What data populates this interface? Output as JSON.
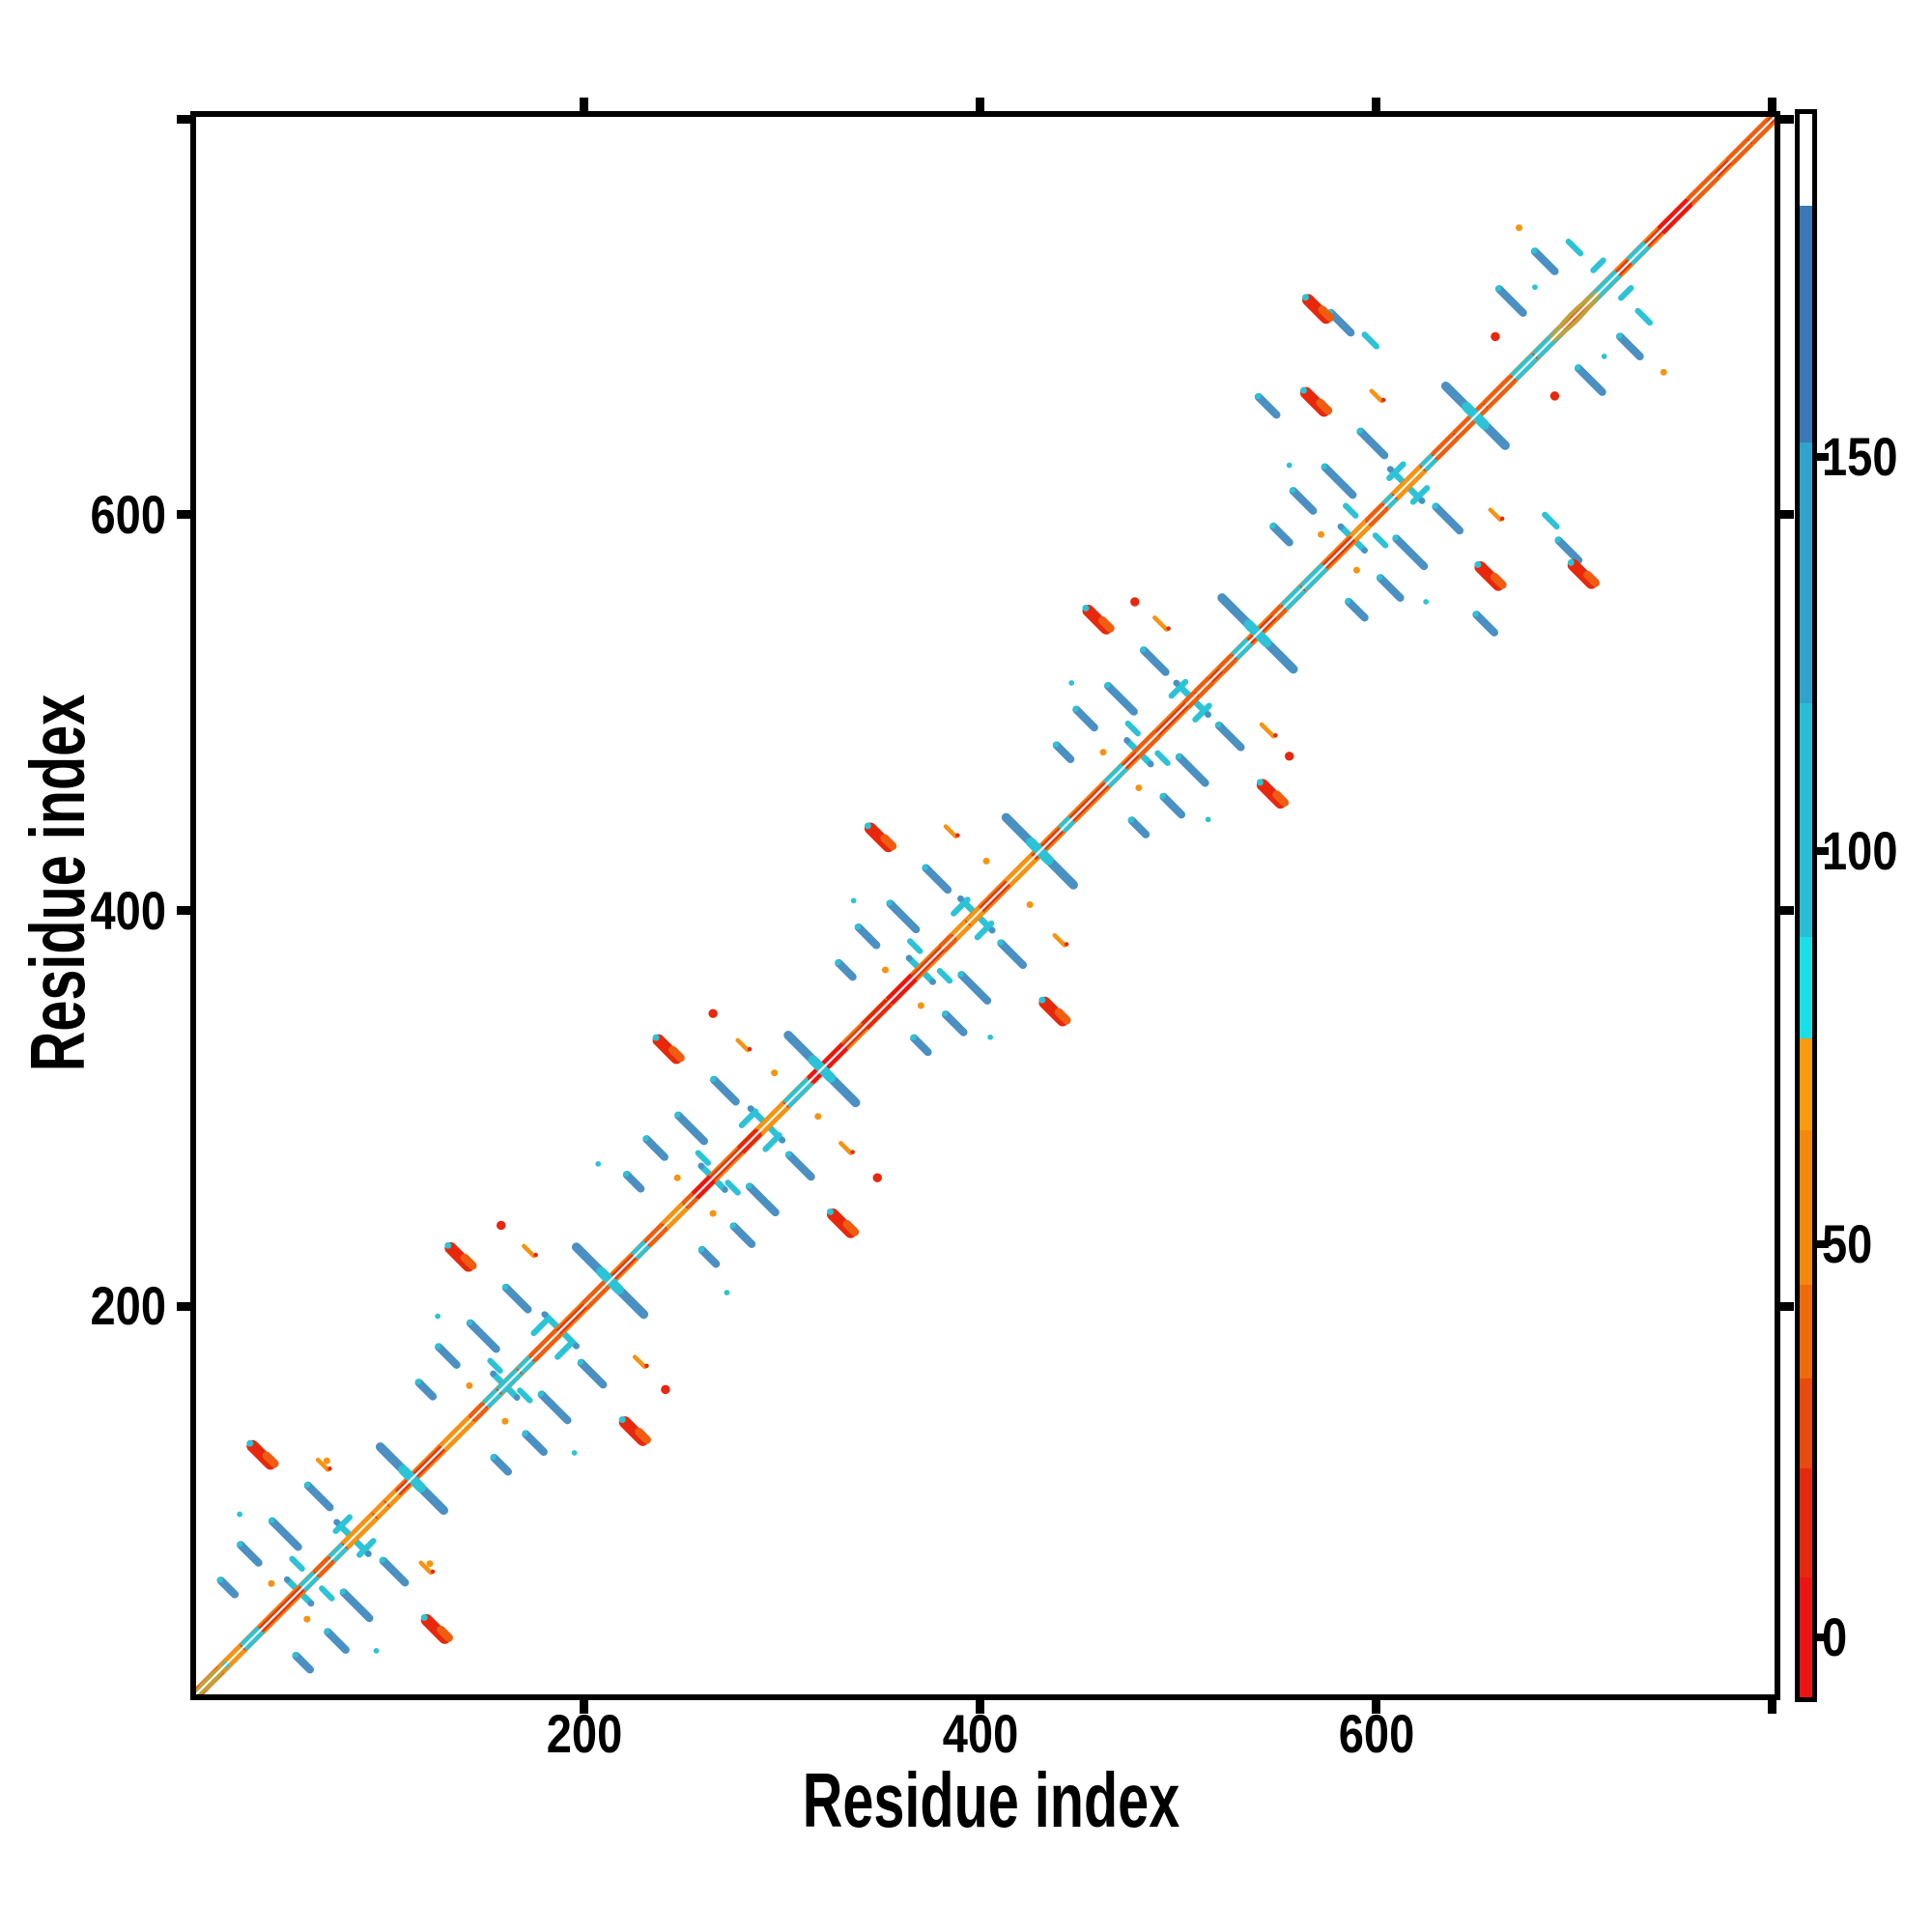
{
  "figure": {
    "background": "#ffffff"
  },
  "axes": {
    "xlabel": "Residue index",
    "ylabel": "Residue index",
    "xticks": [
      "200",
      "400",
      "600"
    ],
    "yticks": [
      "200",
      "400",
      "600"
    ],
    "tick_values": [
      200,
      400,
      600
    ],
    "end_tick_value": 800,
    "domain": [
      4,
      801
    ]
  },
  "colorbar": {
    "tick_labels": [
      "0",
      "50",
      "100",
      "150"
    ],
    "tick_values": [
      0,
      50,
      100,
      150
    ],
    "value_range": [
      -8,
      194
    ],
    "stops": [
      {
        "px": 0,
        "color": "#ffffff"
      },
      {
        "px": 95,
        "color": "#3a78b7"
      },
      {
        "px": 340,
        "color": "#2fa3c9"
      },
      {
        "px": 610,
        "color": "#29bdd6"
      },
      {
        "px": 852,
        "color": "#18dfe8"
      },
      {
        "px": 957,
        "color": "#f89b0e"
      },
      {
        "px": 1052,
        "color": "#f4880a"
      },
      {
        "px": 1212,
        "color": "#ef6a0d"
      },
      {
        "px": 1309,
        "color": "#e94a0e"
      },
      {
        "px": 1402,
        "color": "#e5280e"
      },
      {
        "px": 1515,
        "color": "#ec1313"
      },
      {
        "px": 1639,
        "color": "#ec1313"
      }
    ]
  },
  "chart_data": {
    "type": "heatmap",
    "subtype": "protein-contact-map",
    "title": "",
    "xlabel": "Residue index",
    "ylabel": "Residue index",
    "x_range": [
      0,
      800
    ],
    "y_range": [
      0,
      800
    ],
    "symmetric": true,
    "grid": false,
    "legend_position": "right-colorbar",
    "texture_seed": 20,
    "palette": {
      "steelblue": "#4a90c2",
      "cyan": "#2cc3d6",
      "brightcyan": "#1ddfe8",
      "orange": "#f7930f",
      "orangered": "#f05c10",
      "red": "#e8270c",
      "brightred": "#ee1414",
      "olive": "#bfa23c",
      "band_edge": "#ef7d0d",
      "band_mid": "#e5350e",
      "white": "#ffffff"
    },
    "diagonal": {
      "from": 4,
      "to": 801,
      "band_width": 5.6,
      "mid_width": 3.4,
      "center_width": 1.05,
      "texture_width": 5.2
    },
    "crossings": [
      {
        "c": 113,
        "half": 16
      },
      {
        "c": 213,
        "half": 17
      },
      {
        "c": 320,
        "half": 17
      },
      {
        "c": 430,
        "half": 17
      },
      {
        "c": 540,
        "half": 18
      },
      {
        "c": 650,
        "half": 15
      }
    ],
    "minor_crossings": [
      {
        "c": 56,
        "half": 6
      },
      {
        "c": 83,
        "half": 8
      },
      {
        "c": 160,
        "half": 6
      },
      {
        "c": 188,
        "half": 8
      },
      {
        "c": 265,
        "half": 6
      },
      {
        "c": 292,
        "half": 8
      },
      {
        "c": 370,
        "half": 6
      },
      {
        "c": 398,
        "half": 8
      },
      {
        "c": 480,
        "half": 6
      },
      {
        "c": 507,
        "half": 8
      },
      {
        "c": 588,
        "half": 6
      },
      {
        "c": 615,
        "half": 8
      }
    ],
    "braids": [
      {
        "c": 11,
        "half": 8,
        "bulge": 2.2
      },
      {
        "c": 700,
        "half": 13,
        "bulge": 3.2
      }
    ],
    "blue_streaks": [
      [
        49,
        85,
        13
      ],
      [
        66,
        104,
        11
      ],
      [
        31,
        75,
        9
      ],
      [
        20,
        58,
        7
      ],
      [
        149,
        185,
        13
      ],
      [
        166,
        204,
        11
      ],
      [
        131,
        175,
        9
      ],
      [
        120,
        158,
        7
      ],
      [
        254,
        290,
        13
      ],
      [
        271,
        309,
        11
      ],
      [
        236,
        280,
        9
      ],
      [
        225,
        263,
        7
      ],
      [
        361,
        397,
        13
      ],
      [
        378,
        416,
        11
      ],
      [
        343,
        387,
        9
      ],
      [
        332,
        370,
        7
      ],
      [
        471,
        507,
        13
      ],
      [
        488,
        526,
        11
      ],
      [
        453,
        497,
        9
      ],
      [
        442,
        480,
        7
      ],
      [
        581,
        617,
        14
      ],
      [
        598,
        636,
        12
      ],
      [
        563,
        607,
        10
      ],
      [
        552,
        590,
        8
      ],
      [
        582,
        697,
        10
      ],
      [
        545,
        655,
        9
      ],
      [
        668,
        708,
        12
      ],
      [
        685,
        728,
        10
      ]
    ],
    "cyan_streaks_diag": [
      [
        78,
        90,
        7
      ],
      [
        178,
        190,
        7
      ],
      [
        283,
        295,
        7
      ],
      [
        390,
        402,
        7
      ],
      [
        500,
        512,
        7
      ],
      [
        610,
        622,
        7
      ],
      [
        712,
        726,
        5
      ]
    ],
    "cyan_streaks_anti": [
      [
        55,
        70,
        5
      ],
      [
        155,
        170,
        5
      ],
      [
        260,
        275,
        5
      ],
      [
        367,
        382,
        5
      ],
      [
        477,
        492,
        5
      ],
      [
        587,
        602,
        5
      ],
      [
        597,
        688,
        6
      ],
      [
        700,
        735,
        6
      ]
    ],
    "red_blobs": [
      [
        37,
        125
      ],
      [
        137,
        225
      ],
      [
        242,
        330
      ],
      [
        349,
        437
      ],
      [
        459,
        547
      ],
      [
        569,
        657
      ],
      [
        570,
        704
      ]
    ],
    "orange_squiggles": [
      [
        68,
        120,
        5
      ],
      [
        172,
        228,
        5
      ],
      [
        280,
        332,
        5
      ],
      [
        385,
        440,
        5
      ],
      [
        491,
        545,
        6
      ],
      [
        600,
        660,
        5
      ]
    ],
    "dots": {
      "orange": [
        [
          42,
          60
        ],
        [
          70,
          122
        ],
        [
          142,
          160
        ],
        [
          247,
          265
        ],
        [
          296,
          318
        ],
        [
          352,
          370
        ],
        [
          403,
          425
        ],
        [
          462,
          480
        ],
        [
          572,
          590
        ],
        [
          672,
          745
        ]
      ],
      "red": [
        [
          158,
          241
        ],
        [
          265,
          348
        ],
        [
          478,
          556
        ],
        [
          660,
          690
        ]
      ],
      "cyan": [
        [
          26,
          95
        ],
        [
          126,
          195
        ],
        [
          207,
          272
        ],
        [
          336,
          405
        ],
        [
          446,
          515
        ],
        [
          556,
          625
        ],
        [
          680,
          715
        ]
      ]
    }
  }
}
